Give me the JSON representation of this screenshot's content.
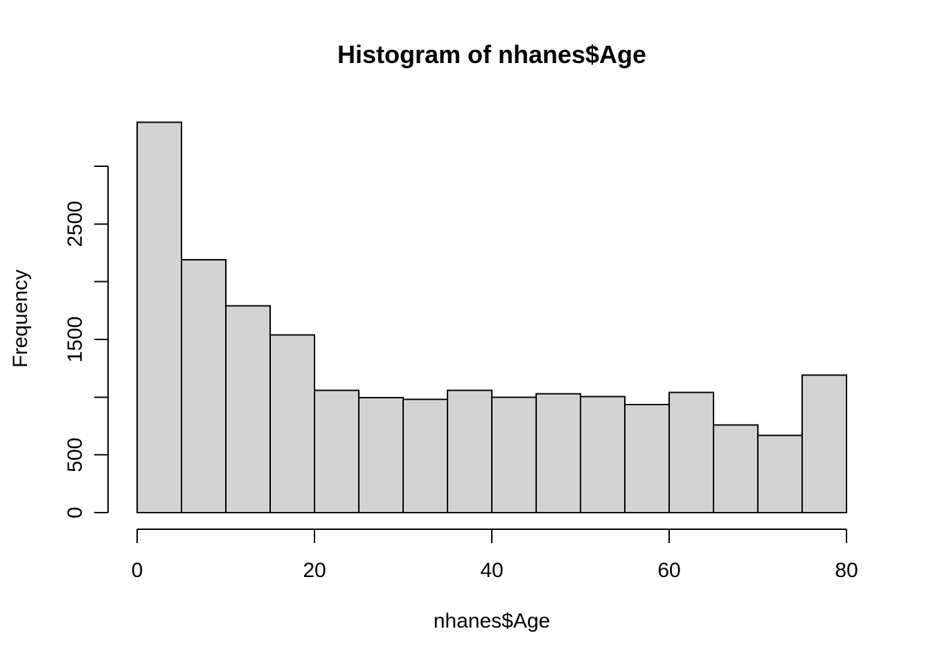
{
  "figure": {
    "background_color": "#ffffff"
  },
  "chart_data": {
    "type": "bar",
    "subtype": "histogram",
    "title": "Histogram of nhanes$Age",
    "xlabel": "nhanes$Age",
    "ylabel": "Frequency",
    "bin_width": 5,
    "bin_edges": [
      0,
      5,
      10,
      15,
      20,
      25,
      30,
      35,
      40,
      45,
      50,
      55,
      60,
      65,
      70,
      75,
      80
    ],
    "counts": [
      3380,
      2190,
      1790,
      1540,
      1060,
      995,
      980,
      1060,
      1000,
      1030,
      1005,
      935,
      1040,
      760,
      670,
      1190
    ],
    "xlim": [
      0,
      80
    ],
    "ylim": [
      0,
      3000
    ],
    "x_ticks": [
      0,
      20,
      40,
      60,
      80
    ],
    "x_tick_labels": [
      "0",
      "20",
      "40",
      "60",
      "80"
    ],
    "y_ticks": [
      0,
      500,
      1000,
      1500,
      2000,
      2500,
      3000
    ],
    "y_tick_labels": [
      "0",
      "500",
      "",
      "1500",
      "",
      "2500",
      ""
    ],
    "grid": "off",
    "legend": "none",
    "bar_fill": "#d3d3d3",
    "bar_stroke": "#000000",
    "axis_color": "#000000",
    "text_color": "#000000"
  }
}
